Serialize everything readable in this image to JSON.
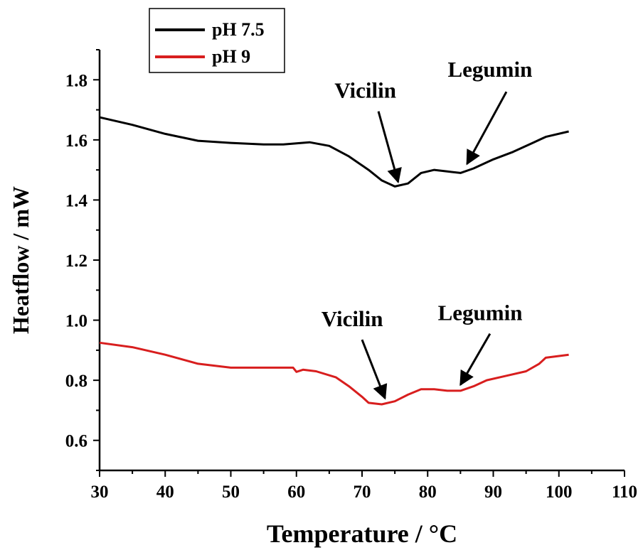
{
  "chart_data": {
    "type": "line",
    "xlabel": "Temperature / °C",
    "ylabel": "Heatflow / mW",
    "xlim": [
      30,
      110
    ],
    "ylim": [
      0.5,
      1.9
    ],
    "x_ticks": [
      30,
      40,
      50,
      60,
      70,
      80,
      90,
      100,
      110
    ],
    "y_ticks": [
      0.6,
      0.8,
      1.0,
      1.2,
      1.4,
      1.6,
      1.8
    ],
    "x_tick_labels": [
      "30",
      "40",
      "50",
      "60",
      "70",
      "80",
      "90",
      "100",
      "110"
    ],
    "y_tick_labels": [
      "0.6",
      "0.8",
      "1.0",
      "1.2",
      "1.4",
      "1.6",
      "1.8"
    ],
    "grid": false,
    "legend_position": "top-left",
    "series": [
      {
        "name": "pH 7.5",
        "color": "#000000",
        "points": [
          [
            30,
            1.675
          ],
          [
            35,
            1.65
          ],
          [
            40,
            1.62
          ],
          [
            45,
            1.597
          ],
          [
            50,
            1.59
          ],
          [
            55,
            1.585
          ],
          [
            58,
            1.585
          ],
          [
            62,
            1.592
          ],
          [
            65,
            1.58
          ],
          [
            68,
            1.545
          ],
          [
            71,
            1.5
          ],
          [
            73,
            1.465
          ],
          [
            75,
            1.445
          ],
          [
            77,
            1.455
          ],
          [
            79,
            1.49
          ],
          [
            81,
            1.5
          ],
          [
            83,
            1.495
          ],
          [
            85,
            1.49
          ],
          [
            87,
            1.505
          ],
          [
            90,
            1.535
          ],
          [
            93,
            1.56
          ],
          [
            96,
            1.59
          ],
          [
            98,
            1.61
          ],
          [
            101.5,
            1.628
          ]
        ]
      },
      {
        "name": "pH 9",
        "color": "#d81e1e",
        "points": [
          [
            30,
            0.925
          ],
          [
            35,
            0.91
          ],
          [
            40,
            0.885
          ],
          [
            45,
            0.855
          ],
          [
            50,
            0.842
          ],
          [
            55,
            0.842
          ],
          [
            59.5,
            0.842
          ],
          [
            60,
            0.828
          ],
          [
            61,
            0.835
          ],
          [
            63,
            0.83
          ],
          [
            66,
            0.81
          ],
          [
            68,
            0.78
          ],
          [
            70,
            0.745
          ],
          [
            71,
            0.725
          ],
          [
            73,
            0.72
          ],
          [
            75,
            0.73
          ],
          [
            77,
            0.752
          ],
          [
            79,
            0.77
          ],
          [
            81,
            0.77
          ],
          [
            83,
            0.765
          ],
          [
            85,
            0.765
          ],
          [
            87,
            0.78
          ],
          [
            89,
            0.8
          ],
          [
            92,
            0.815
          ],
          [
            95,
            0.83
          ],
          [
            97,
            0.855
          ],
          [
            98,
            0.875
          ],
          [
            101.5,
            0.885
          ]
        ]
      }
    ],
    "annotations": [
      {
        "text": "Vicilin",
        "tx": 70.5,
        "ty": 1.74,
        "ax_from": [
          72.5,
          1.695
        ],
        "ax_to": [
          75.5,
          1.46
        ]
      },
      {
        "text": "Legumin",
        "tx": 89.5,
        "ty": 1.81,
        "ax_from": [
          92,
          1.76
        ],
        "ax_to": [
          86,
          1.52
        ]
      },
      {
        "text": "Vicilin",
        "tx": 68.5,
        "ty": 0.98,
        "ax_from": [
          70,
          0.935
        ],
        "ax_to": [
          73.5,
          0.74
        ]
      },
      {
        "text": "Legumin",
        "tx": 88,
        "ty": 1.0,
        "ax_from": [
          89.5,
          0.955
        ],
        "ax_to": [
          85,
          0.785
        ]
      }
    ]
  }
}
